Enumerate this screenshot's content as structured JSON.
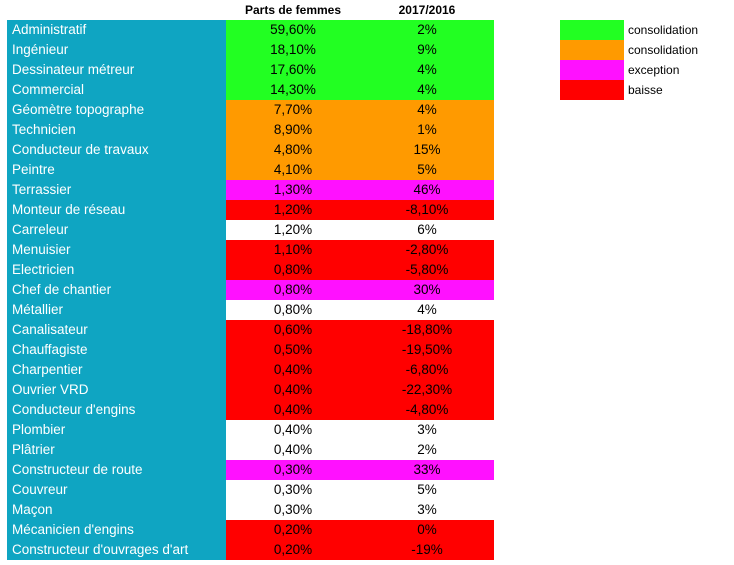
{
  "header": {
    "col_share": "Parts de femmes",
    "col_change": "2017/2016"
  },
  "colors": {
    "name_bg": "#0fa5c2",
    "consolidation_green": "#22ff22",
    "consolidation_orange": "#ff9a00",
    "exception": "#ff11ff",
    "baisse": "#ff0000",
    "neutral": "#ffffff"
  },
  "legend": [
    {
      "label": "consolidation",
      "color": "#22ff22"
    },
    {
      "label": "consolidation",
      "color": "#ff9a00"
    },
    {
      "label": "exception",
      "color": "#ff11ff"
    },
    {
      "label": "baisse",
      "color": "#ff0000"
    }
  ],
  "rows": [
    {
      "name": "Administratif",
      "share": "59,60%",
      "change": "2%",
      "color": "#22ff22"
    },
    {
      "name": "Ingénieur",
      "share": "18,10%",
      "change": "9%",
      "color": "#22ff22"
    },
    {
      "name": "Dessinateur métreur",
      "share": "17,60%",
      "change": "4%",
      "color": "#22ff22"
    },
    {
      "name": "Commercial",
      "share": "14,30%",
      "change": "4%",
      "color": "#22ff22"
    },
    {
      "name": "Géomètre topographe",
      "share": "7,70%",
      "change": "4%",
      "color": "#ff9a00"
    },
    {
      "name": "Technicien",
      "share": "8,90%",
      "change": "1%",
      "color": "#ff9a00"
    },
    {
      "name": "Conducteur de travaux",
      "share": "4,80%",
      "change": "15%",
      "color": "#ff9a00"
    },
    {
      "name": "Peintre",
      "share": "4,10%",
      "change": "5%",
      "color": "#ff9a00"
    },
    {
      "name": "Terrassier",
      "share": "1,30%",
      "change": "46%",
      "color": "#ff11ff"
    },
    {
      "name": "Monteur de réseau",
      "share": "1,20%",
      "change": "-8,10%",
      "color": "#ff0000"
    },
    {
      "name": "Carreleur",
      "share": "1,20%",
      "change": "6%",
      "color": "#ffffff"
    },
    {
      "name": "Menuisier",
      "share": "1,10%",
      "change": "-2,80%",
      "color": "#ff0000"
    },
    {
      "name": "Electricien",
      "share": "0,80%",
      "change": "-5,80%",
      "color": "#ff0000"
    },
    {
      "name": "Chef de chantier",
      "share": "0,80%",
      "change": "30%",
      "color": "#ff11ff"
    },
    {
      "name": "Métallier",
      "share": "0,80%",
      "change": "4%",
      "color": "#ffffff"
    },
    {
      "name": "Canalisateur",
      "share": "0,60%",
      "change": "-18,80%",
      "color": "#ff0000"
    },
    {
      "name": "Chauffagiste",
      "share": "0,50%",
      "change": "-19,50%",
      "color": "#ff0000"
    },
    {
      "name": "Charpentier",
      "share": "0,40%",
      "change": "-6,80%",
      "color": "#ff0000"
    },
    {
      "name": "Ouvrier VRD",
      "share": "0,40%",
      "change": "-22,30%",
      "color": "#ff0000"
    },
    {
      "name": "Conducteur d'engins",
      "share": "0,40%",
      "change": "-4,80%",
      "color": "#ff0000"
    },
    {
      "name": "Plombier",
      "share": "0,40%",
      "change": "3%",
      "color": "#ffffff"
    },
    {
      "name": "Plâtrier",
      "share": "0,40%",
      "change": "2%",
      "color": "#ffffff"
    },
    {
      "name": "Constructeur de route",
      "share": "0,30%",
      "change": "33%",
      "color": "#ff11ff"
    },
    {
      "name": "Couvreur",
      "share": "0,30%",
      "change": "5%",
      "color": "#ffffff"
    },
    {
      "name": "Maçon",
      "share": "0,30%",
      "change": "3%",
      "color": "#ffffff"
    },
    {
      "name": "Mécanicien d'engins",
      "share": "0,20%",
      "change": "0%",
      "color": "#ff0000"
    },
    {
      "name": "Constructeur d'ouvrages d'art",
      "share": "0,20%",
      "change": "-19%",
      "color": "#ff0000"
    }
  ]
}
